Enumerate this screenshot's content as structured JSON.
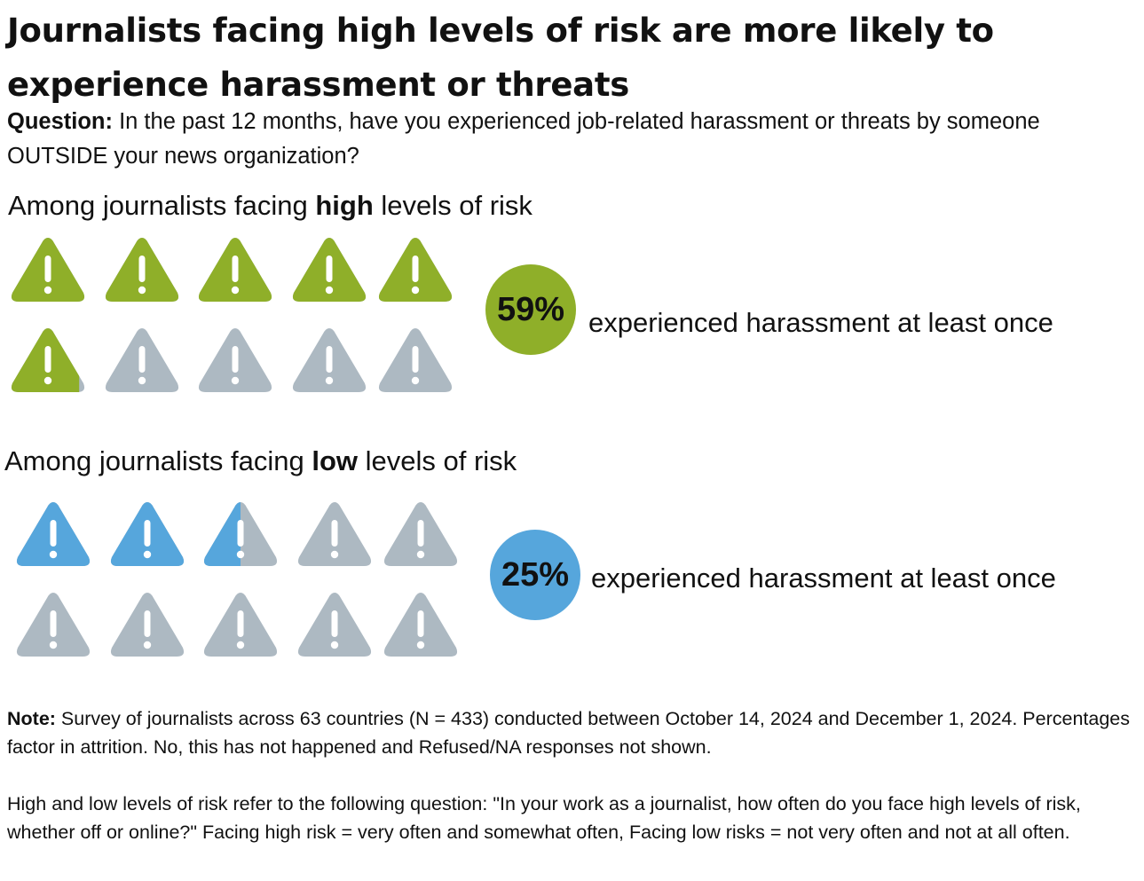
{
  "title": "Journalists facing high levels of risk are more likely to experience harassment or threats",
  "question": {
    "label": "Question:",
    "text": " In the past 12 months, have you experienced job-related harassment or threats by someone OUTSIDE your news organization?"
  },
  "groups": [
    {
      "label_pre": "Among journalists facing ",
      "label_bold": "high",
      "label_post": " levels of risk",
      "percent_label": "59%",
      "description": "experienced harassment at least once",
      "color": "#8FAF29"
    },
    {
      "label_pre": "Among journalists facing ",
      "label_bold": "low",
      "label_post": " levels of risk",
      "percent_label": "25%",
      "description": "experienced harassment at least once",
      "color": "#56A6DC"
    }
  ],
  "chart_data": {
    "type": "pictogram",
    "icon": "warning-triangle-icon",
    "icons_per_group": 10,
    "categories": [
      "High levels of risk",
      "Low levels of risk"
    ],
    "values": [
      59,
      25
    ],
    "unit": "%",
    "empty_color": "#ADB9C2"
  },
  "note": {
    "label": "Note:",
    "text": " Survey of journalists across 63 countries (N = 433) conducted between October 14, 2024 and December 1, 2024. Percentages factor in attrition. No, this has not happened and Refused/NA responses not shown.",
    "paragraph2": "High and low levels of risk refer to the following question: \"In your work as a journalist, how often do you face high levels of risk, whether off or online?\" Facing high risk = very often and somewhat often, Facing low risks = not very often and not at all often."
  }
}
